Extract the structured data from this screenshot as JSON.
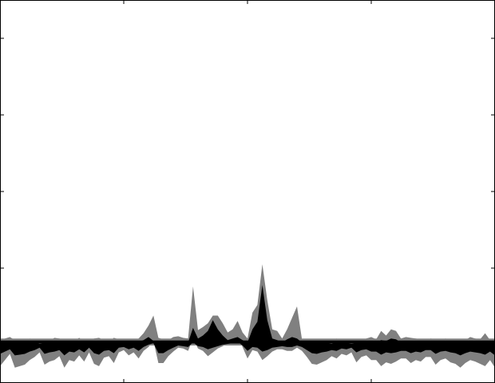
{
  "chart_data": {
    "type": "area",
    "title": "",
    "xlabel": "",
    "ylabel": "",
    "xlim": [
      0,
      200
    ],
    "ylim": [
      -5,
      45
    ],
    "x_ticks": [
      50,
      100,
      150
    ],
    "y_ticks": [
      0,
      10,
      20,
      30,
      40
    ],
    "grid": false,
    "legend": "none",
    "baseline_band": {
      "y": 0,
      "lower": -0.1,
      "upper": 0.8
    },
    "series": [
      {
        "role": "envelope",
        "color": "#808080",
        "x": [
          0,
          2,
          4,
          6,
          8,
          10,
          12,
          14,
          16,
          18,
          20,
          22,
          24,
          26,
          28,
          30,
          32,
          34,
          36,
          38,
          40,
          42,
          44,
          46,
          48,
          50,
          52,
          54,
          56,
          58,
          60,
          62,
          64,
          66,
          68,
          70,
          72,
          74,
          76,
          78,
          80,
          82,
          84,
          86,
          88,
          90,
          92,
          94,
          96,
          98,
          100,
          102,
          104,
          106,
          108,
          110,
          112,
          114,
          116,
          118,
          120,
          122,
          124,
          126,
          128,
          130,
          132,
          134,
          136,
          138,
          140,
          142,
          144,
          146,
          148,
          150,
          152,
          154,
          156,
          158,
          160,
          162,
          164,
          166,
          168,
          170,
          172,
          174,
          176,
          178,
          180,
          182,
          184,
          186,
          188,
          190,
          192,
          194,
          196,
          198,
          200
        ],
        "upper": [
          0.5,
          0.8,
          1.0,
          0.6,
          0.4,
          0.3,
          0.8,
          0.5,
          0.2,
          0.3,
          0.5,
          0.9,
          0.8,
          0.6,
          0.3,
          0.5,
          0.9,
          0.4,
          0.5,
          0.8,
          0.9,
          0.6,
          0.4,
          0.9,
          0.7,
          0.3,
          0.6,
          0.5,
          0.8,
          1.5,
          2.5,
          3.8,
          0.9,
          0.7,
          0.6,
          1.0,
          1.1,
          0.9,
          0.8,
          7.6,
          1.9,
          2.3,
          2.8,
          3.8,
          3.8,
          2.8,
          1.6,
          2.0,
          3.1,
          1.6,
          0.8,
          4.2,
          5.2,
          10.5,
          5.8,
          2.0,
          1.8,
          0.8,
          2.0,
          3.5,
          5.0,
          0.7,
          0.6,
          0.6,
          0.5,
          0.6,
          0.5,
          0.4,
          0.8,
          0.5,
          0.4,
          0.3,
          0.5,
          0.6,
          0.8,
          1.0,
          0.7,
          1.8,
          1.2,
          2.0,
          1.8,
          0.8,
          1.0,
          0.9,
          0.8,
          0.7,
          0.5,
          0.8,
          0.7,
          0.6,
          0.8,
          0.6,
          0.5,
          0.7,
          0.6,
          1.0,
          0.8,
          0.7,
          1.5,
          0.6,
          0.5
        ],
        "lower": [
          -2.8,
          -2.0,
          -1.2,
          -3.0,
          -2.8,
          -2.6,
          -2.0,
          -1.6,
          -1.0,
          -2.6,
          -2.2,
          -2.0,
          -1.5,
          -3.0,
          -2.0,
          -2.2,
          -1.4,
          -2.2,
          -1.0,
          -2.5,
          -2.8,
          -1.7,
          -1.5,
          -2.4,
          -1.0,
          -0.7,
          -1.4,
          -1.0,
          -1.8,
          -0.8,
          -0.3,
          0.5,
          -2.4,
          -2.4,
          -1.5,
          -0.9,
          -0.4,
          -0.5,
          -0.8,
          0.8,
          -0.5,
          -0.8,
          -1.5,
          -1.0,
          -0.5,
          -0.2,
          0.2,
          0.5,
          1.0,
          -0.3,
          -1.8,
          -0.7,
          -0.9,
          -2.0,
          -1.5,
          -0.9,
          -0.6,
          -0.6,
          -0.8,
          -0.8,
          -0.4,
          -0.8,
          -1.6,
          -2.5,
          -2.6,
          -2.3,
          -2.0,
          -1.5,
          -1.8,
          -1.2,
          -1.4,
          -1.0,
          -2.3,
          -1.6,
          -1.4,
          -2.0,
          -2.0,
          -2.8,
          -2.3,
          -2.5,
          -2.2,
          -1.8,
          -1.8,
          -2.4,
          -2.0,
          -2.2,
          -1.6,
          -1.6,
          -2.6,
          -2.0,
          -1.8,
          -2.3,
          -2.5,
          -3.0,
          -2.4,
          -2.0,
          -2.2,
          -2.5,
          -2.8,
          -2.0,
          -3.0
        ]
      },
      {
        "role": "core",
        "color": "#000000",
        "x": [
          0,
          2,
          4,
          6,
          8,
          10,
          12,
          14,
          16,
          18,
          20,
          22,
          24,
          26,
          28,
          30,
          32,
          34,
          36,
          38,
          40,
          42,
          44,
          46,
          48,
          50,
          52,
          54,
          56,
          58,
          60,
          62,
          64,
          66,
          68,
          70,
          72,
          74,
          76,
          78,
          80,
          82,
          84,
          86,
          88,
          90,
          92,
          94,
          96,
          98,
          100,
          102,
          104,
          106,
          108,
          110,
          112,
          114,
          116,
          118,
          120,
          122,
          124,
          126,
          128,
          130,
          132,
          134,
          136,
          138,
          140,
          142,
          144,
          146,
          148,
          150,
          152,
          154,
          156,
          158,
          160,
          162,
          164,
          166,
          168,
          170,
          172,
          174,
          176,
          178,
          180,
          182,
          184,
          186,
          188,
          190,
          192,
          194,
          196,
          198,
          200
        ],
        "upper": [
          0.2,
          0.3,
          0.4,
          0.3,
          0.2,
          0.2,
          0.4,
          0.3,
          0.1,
          0.2,
          0.2,
          0.4,
          0.3,
          0.3,
          0.2,
          0.2,
          0.4,
          0.2,
          0.2,
          0.4,
          0.3,
          0.3,
          0.2,
          0.4,
          0.3,
          0.2,
          0.3,
          0.2,
          0.4,
          0.6,
          1.0,
          0.5,
          0.3,
          0.3,
          0.2,
          0.4,
          0.4,
          0.3,
          0.3,
          2.2,
          0.8,
          1.2,
          1.8,
          3.2,
          2.0,
          1.2,
          0.6,
          0.8,
          1.0,
          0.6,
          0.3,
          2.0,
          3.0,
          7.8,
          3.2,
          0.8,
          0.6,
          0.3,
          0.7,
          1.0,
          0.8,
          0.3,
          0.2,
          0.2,
          0.2,
          0.2,
          0.2,
          0.1,
          0.3,
          0.2,
          0.2,
          0.1,
          0.2,
          0.2,
          0.3,
          0.3,
          0.3,
          0.6,
          0.5,
          0.8,
          0.7,
          0.3,
          0.4,
          0.3,
          0.3,
          0.3,
          0.2,
          0.3,
          0.3,
          0.2,
          0.3,
          0.2,
          0.2,
          0.3,
          0.2,
          0.4,
          0.3,
          0.3,
          0.5,
          0.2,
          0.2
        ],
        "lower": [
          -1.2,
          -0.9,
          -0.6,
          -1.4,
          -1.3,
          -1.2,
          -0.9,
          -0.7,
          -0.4,
          -1.2,
          -1.0,
          -0.9,
          -0.7,
          -1.4,
          -0.9,
          -1.0,
          -0.6,
          -1.0,
          -0.4,
          -1.1,
          -1.3,
          -0.8,
          -0.7,
          -1.1,
          -0.4,
          -0.3,
          -0.6,
          -0.4,
          -0.8,
          -0.3,
          0.0,
          0.2,
          -1.1,
          -1.1,
          -0.7,
          -0.4,
          -0.1,
          -0.2,
          -0.3,
          0.3,
          -0.2,
          -0.3,
          -0.6,
          -0.4,
          -0.2,
          0.0,
          0.1,
          0.2,
          0.4,
          -0.1,
          -0.8,
          -0.3,
          -0.4,
          -0.9,
          -0.7,
          -0.4,
          -0.3,
          -0.2,
          -0.3,
          -0.3,
          -0.1,
          -0.3,
          -0.7,
          -1.1,
          -1.2,
          -1.0,
          -0.9,
          -0.7,
          -0.8,
          -0.5,
          -0.6,
          -0.4,
          -1.0,
          -0.7,
          -0.6,
          -0.9,
          -0.9,
          -1.3,
          -1.0,
          -1.1,
          -1.0,
          -0.8,
          -0.8,
          -1.1,
          -0.9,
          -1.0,
          -0.7,
          -0.7,
          -1.2,
          -0.9,
          -0.8,
          -1.0,
          -1.1,
          -1.4,
          -1.1,
          -0.9,
          -1.0,
          -1.1,
          -1.3,
          -0.9,
          -1.4
        ]
      }
    ]
  }
}
